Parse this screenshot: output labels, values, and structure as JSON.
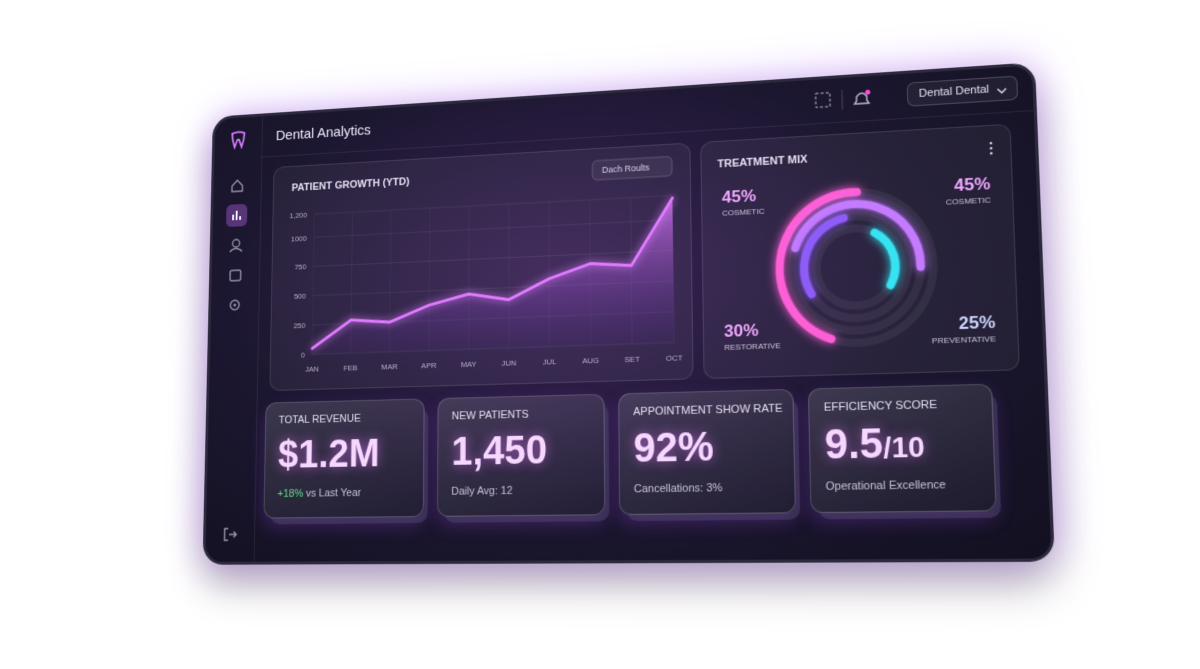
{
  "header": {
    "title": "Dental Analytics",
    "account": "Dental Dental"
  },
  "chart_data": [
    {
      "type": "line",
      "title": "PATIENT GROWTH (YTD)",
      "filter": "Dach Roults",
      "categories": [
        "JAN",
        "FEB",
        "MAR",
        "APR",
        "MAY",
        "JUN",
        "JUL",
        "AUG",
        "SET",
        "OCT"
      ],
      "values": [
        50,
        280,
        250,
        380,
        460,
        400,
        560,
        670,
        640,
        1180
      ],
      "color": "#e07bff",
      "ylim": [
        0,
        1200
      ],
      "yticks": [
        0,
        250,
        500,
        750,
        1000,
        {
          "value": 1200,
          "label": "1,200"
        }
      ],
      "grid": true
    },
    {
      "type": "donut",
      "title": "TREATMENT MIX",
      "categories": [
        "COSMETIC",
        "COSMETIC",
        "RESTORATIVE",
        "PREVENTATIVE"
      ],
      "values": [
        45,
        45,
        30,
        25
      ],
      "value_labels": [
        "45%",
        "45%",
        "30%",
        "25%"
      ],
      "colors": [
        "#ff5fd6",
        "#c47bff",
        "#8e5cf6",
        "#35e3f2"
      ]
    }
  ],
  "kpis": [
    {
      "label": "TOTAL REVENUE",
      "value": "$1.2M",
      "change": "+18%",
      "note": "vs Last Year"
    },
    {
      "label": "NEW PATIENTS",
      "value": "1,450",
      "note": "Daily Avg: 12"
    },
    {
      "label": "APPOINTMENT SHOW RATE",
      "value": "92%",
      "note": "Cancellations: 3%"
    },
    {
      "label": "EFFICIENCY SCORE",
      "value": "9.5",
      "suffix": "/10",
      "note": "Operational Excellence"
    }
  ]
}
